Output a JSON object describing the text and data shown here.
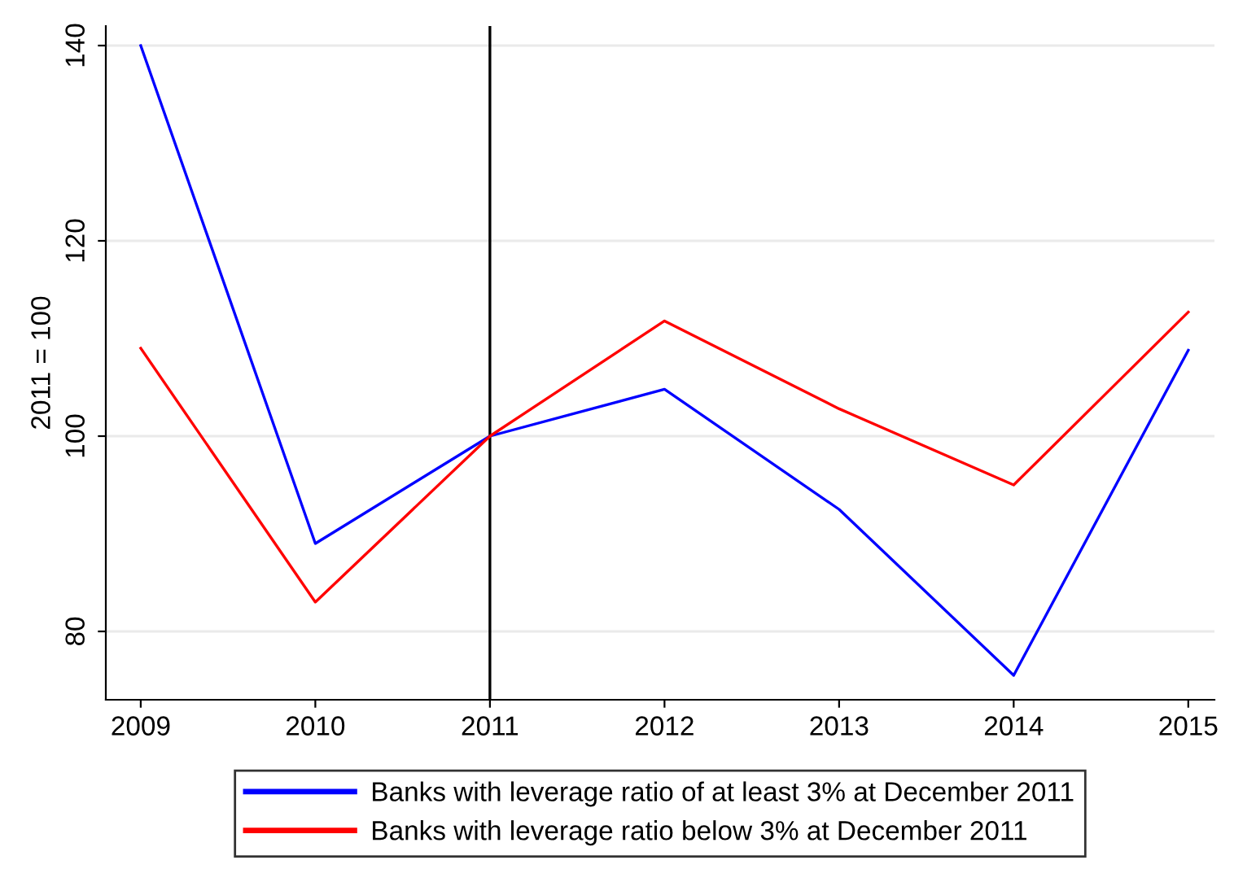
{
  "chart_data": {
    "type": "line",
    "ylabel": "2011 = 100",
    "x": [
      2009,
      2010,
      2011,
      2012,
      2013,
      2014,
      2015
    ],
    "xlim": [
      2008.8,
      2015.15
    ],
    "xticks": [
      2009,
      2010,
      2011,
      2012,
      2013,
      2014,
      2015
    ],
    "ylim": [
      73,
      142
    ],
    "yticks": [
      80,
      100,
      120,
      140
    ],
    "grid": "y",
    "legend": "bottom",
    "marker": "none",
    "line_style": "solid",
    "ref_lines": [
      {
        "axis": "x",
        "value": 2011,
        "color": "#000000"
      }
    ],
    "series": [
      {
        "name": "Banks with leverage ratio of at least 3% at December 2011",
        "color": "#0000ff",
        "values": [
          140,
          89,
          100,
          104.8,
          92.5,
          75.5,
          108.8
        ]
      },
      {
        "name": "Banks with leverage ratio below 3% at December 2011",
        "color": "#ff0000",
        "values": [
          109,
          83,
          100,
          111.8,
          102.8,
          95,
          112.7
        ]
      }
    ]
  }
}
